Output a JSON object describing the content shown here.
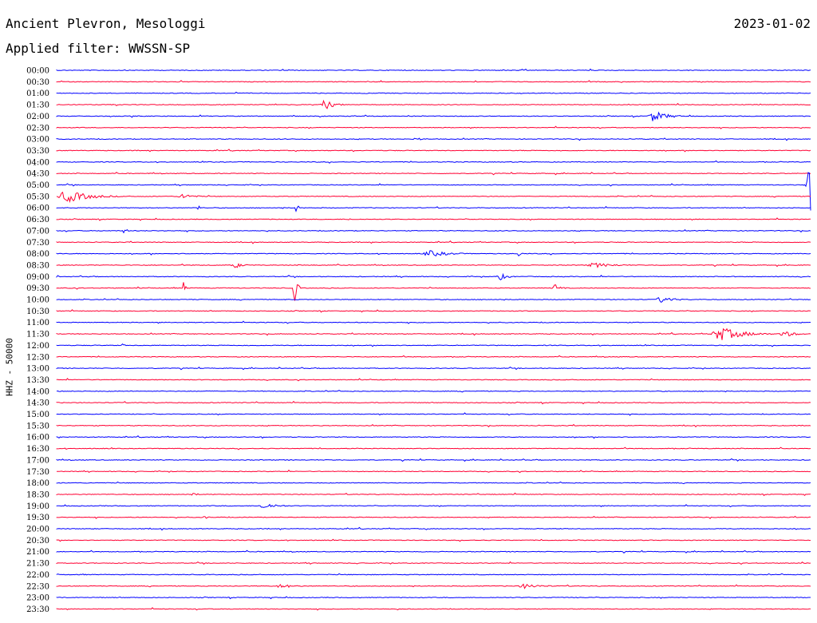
{
  "header": {
    "station": "Ancient Plevron, Mesologgi",
    "date": "2023-01-02",
    "filter_label": "Applied filter: WWSSN-SP"
  },
  "chart_data": {
    "type": "line",
    "title": "Ancient Plevron, Mesologgi",
    "ylabel": "HHZ - 50000",
    "colors": {
      "even_rows": "#0000ff",
      "odd_rows": "#ff0033"
    },
    "rows": [
      "00:00",
      "00:30",
      "01:00",
      "01:30",
      "02:00",
      "02:30",
      "03:00",
      "03:30",
      "04:00",
      "04:30",
      "05:00",
      "05:30",
      "06:00",
      "06:30",
      "07:00",
      "07:30",
      "08:00",
      "08:30",
      "09:00",
      "09:30",
      "10:00",
      "10:30",
      "11:00",
      "11:30",
      "12:00",
      "12:30",
      "13:00",
      "13:30",
      "14:00",
      "14:30",
      "15:00",
      "15:30",
      "16:00",
      "16:30",
      "17:00",
      "17:30",
      "18:00",
      "18:30",
      "19:00",
      "19:30",
      "20:00",
      "20:30",
      "21:00",
      "21:30",
      "22:00",
      "22:30",
      "23:00",
      "23:30"
    ],
    "row_duration_min": 30,
    "events": [
      {
        "row": "01:30",
        "minute": 10.5,
        "amplitude": 7,
        "duration_min": 1.0
      },
      {
        "row": "02:00",
        "minute": 23.5,
        "amplitude": 7,
        "duration_min": 1.5
      },
      {
        "row": "03:00",
        "minute": 14.2,
        "amplitude": 3,
        "duration_min": 0.6
      },
      {
        "row": "05:00",
        "minute": 29.8,
        "amplitude": 40,
        "duration_min": 1.3
      },
      {
        "row": "05:30",
        "minute": 0.0,
        "amplitude": 8,
        "duration_min": 2.5
      },
      {
        "row": "05:30",
        "minute": 4.8,
        "amplitude": 4,
        "duration_min": 1.2
      },
      {
        "row": "06:00",
        "minute": 5.6,
        "amplitude": 5,
        "duration_min": 0.2
      },
      {
        "row": "06:00",
        "minute": 9.5,
        "amplitude": 8,
        "duration_min": 0.2
      },
      {
        "row": "06:30",
        "minute": 11.6,
        "amplitude": 3,
        "duration_min": 0.2
      },
      {
        "row": "07:00",
        "minute": 2.6,
        "amplitude": 3,
        "duration_min": 0.5
      },
      {
        "row": "08:00",
        "minute": 14.5,
        "amplitude": 4,
        "duration_min": 2.2
      },
      {
        "row": "08:00",
        "minute": 18.3,
        "amplitude": 5,
        "duration_min": 0.3
      },
      {
        "row": "08:30",
        "minute": 7.0,
        "amplitude": 5,
        "duration_min": 0.6
      },
      {
        "row": "08:30",
        "minute": 21.0,
        "amplitude": 3,
        "duration_min": 2.5
      },
      {
        "row": "09:00",
        "minute": 17.5,
        "amplitude": 5,
        "duration_min": 0.8
      },
      {
        "row": "09:30",
        "minute": 5.0,
        "amplitude": 10,
        "duration_min": 0.2
      },
      {
        "row": "09:30",
        "minute": 9.4,
        "amplitude": 22,
        "duration_min": 0.3
      },
      {
        "row": "09:30",
        "minute": 19.7,
        "amplitude": 6,
        "duration_min": 0.6
      },
      {
        "row": "10:00",
        "minute": 23.8,
        "amplitude": 4,
        "duration_min": 1.5
      },
      {
        "row": "11:30",
        "minute": 26.0,
        "amplitude": 9,
        "duration_min": 2.5
      },
      {
        "row": "11:30",
        "minute": 28.7,
        "amplitude": 5,
        "duration_min": 1.2
      },
      {
        "row": "12:00",
        "minute": 2.6,
        "amplitude": 3,
        "duration_min": 0.2
      },
      {
        "row": "18:30",
        "minute": 5.4,
        "amplitude": 3,
        "duration_min": 0.4
      },
      {
        "row": "19:00",
        "minute": 8.0,
        "amplitude": 4,
        "duration_min": 1.5
      },
      {
        "row": "19:30",
        "minute": 5.8,
        "amplitude": 3,
        "duration_min": 0.4
      },
      {
        "row": "22:30",
        "minute": 8.7,
        "amplitude": 3,
        "duration_min": 1.4
      },
      {
        "row": "22:30",
        "minute": 18.3,
        "amplitude": 3,
        "duration_min": 2.0
      }
    ]
  }
}
